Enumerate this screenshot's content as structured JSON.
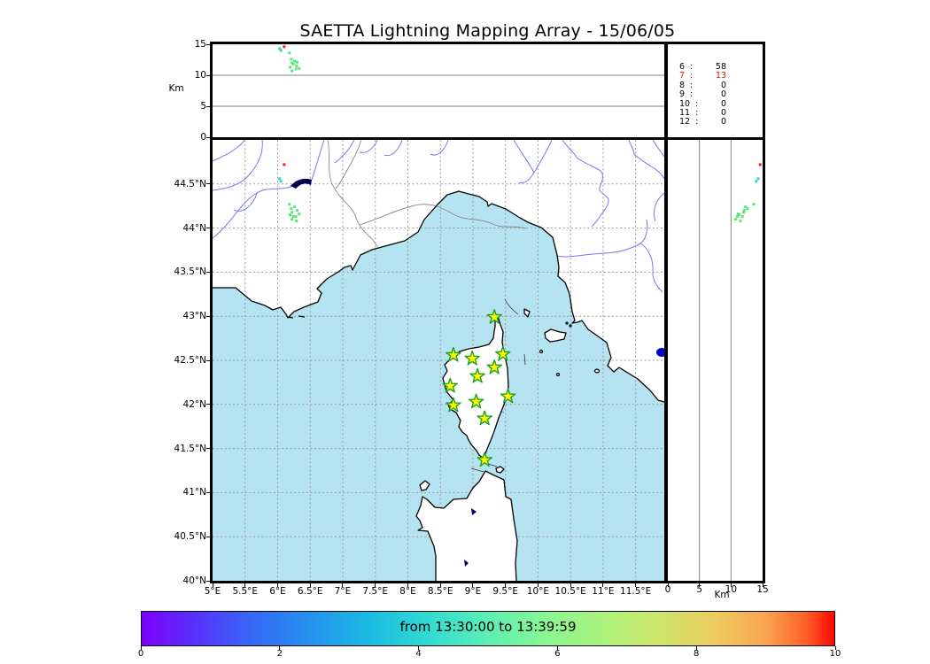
{
  "title": "SAETTA Lightning Mapping Array - 15/06/05",
  "alt_axis": {
    "label": "Km",
    "ticks": [
      0,
      5,
      10,
      15
    ],
    "max": 15,
    "gridlines": [
      5,
      10
    ]
  },
  "map_axes": {
    "lon_range": [
      5,
      11.94
    ],
    "lat_range": [
      40,
      45
    ],
    "x_ticks": [
      {
        "lon": 5,
        "label": "5°E"
      },
      {
        "lon": 5.5,
        "label": "5.5°E"
      },
      {
        "lon": 6,
        "label": "6°E"
      },
      {
        "lon": 6.5,
        "label": "6.5°E"
      },
      {
        "lon": 7,
        "label": "7°E"
      },
      {
        "lon": 7.5,
        "label": "7.5°E"
      },
      {
        "lon": 8,
        "label": "8°E"
      },
      {
        "lon": 8.5,
        "label": "8.5°E"
      },
      {
        "lon": 9,
        "label": "9°E"
      },
      {
        "lon": 9.5,
        "label": "9.5°E"
      },
      {
        "lon": 10,
        "label": "10°E"
      },
      {
        "lon": 10.5,
        "label": "10.5°E"
      },
      {
        "lon": 11,
        "label": "11°E"
      },
      {
        "lon": 11.5,
        "label": "11.5°E"
      }
    ],
    "y_ticks": [
      {
        "lat": 44.5,
        "label": "44.5°N"
      },
      {
        "lat": 44,
        "label": "44°N"
      },
      {
        "lat": 43.5,
        "label": "43.5°N"
      },
      {
        "lat": 43,
        "label": "43°N"
      },
      {
        "lat": 42.5,
        "label": "42.5°N"
      },
      {
        "lat": 42,
        "label": "42°N"
      },
      {
        "lat": 41.5,
        "label": "41.5°N"
      },
      {
        "lat": 41,
        "label": "41°N"
      },
      {
        "lat": 40.5,
        "label": "40.5°N"
      },
      {
        "lat": 40,
        "label": "40°N"
      }
    ]
  },
  "stats_panel": {
    "rows": [
      {
        "station": "6",
        "count": "58",
        "highlight": false
      },
      {
        "station": "7",
        "count": "13",
        "highlight": true
      },
      {
        "station": "8",
        "count": "0",
        "highlight": false
      },
      {
        "station": "9",
        "count": "0",
        "highlight": false
      },
      {
        "station": "10",
        "count": "0",
        "highlight": false
      },
      {
        "station": "11",
        "count": "0",
        "highlight": false
      },
      {
        "station": "12",
        "count": "0",
        "highlight": false
      }
    ]
  },
  "colorbar": {
    "label": "from 13:30:00 to 13:39:59",
    "ticks": [
      "0",
      "2",
      "4",
      "6",
      "8",
      "10"
    ],
    "range": [
      0,
      10
    ],
    "colormap": "rainbow"
  },
  "colors": {
    "sea": "#b5e3f2",
    "grid": "#999999",
    "panel_grid": "#808080",
    "river": "#7878ee",
    "country_border": "#8a8a8a",
    "coast": "#000000",
    "lake": "#000050",
    "lake_bright": "#0000cc",
    "star_fill": "#ffff00",
    "star_edge": "#1fa01f",
    "source_red": "#fb1f0e",
    "source_teal": "#2ed9c3",
    "source_green": "#55e77a",
    "stat_highlight": "#e80c00"
  },
  "chart_data": {
    "type": "scatter",
    "title": "SAETTA Lightning Mapping Array - 15/06/05",
    "description": "Lightning VHF sources in three linked projections: altitude vs longitude (top strip), plan view map (center), altitude vs latitude (right strip); station-count histogram text panel (top right); time colorbar (bottom).",
    "panels": [
      {
        "name": "altitude-longitude",
        "ylabel": "Km",
        "ylim": [
          0,
          15
        ],
        "xlim": [
          5,
          11.94
        ],
        "gridlines_km": [
          5,
          10
        ]
      },
      {
        "name": "map",
        "xlim_lon": [
          5,
          11.94
        ],
        "ylim_lat": [
          40,
          45
        ],
        "grid_step_deg": 0.5,
        "grid_style": "dotted"
      },
      {
        "name": "altitude-latitude",
        "xlabel": "Km",
        "xlim": [
          0,
          15
        ],
        "ylim": [
          40,
          45
        ],
        "gridlines_km": [
          5,
          10
        ]
      }
    ],
    "stations_lonlat": [
      [
        9.33,
        42.99
      ],
      [
        8.7,
        42.56
      ],
      [
        8.99,
        42.52
      ],
      [
        9.46,
        42.57
      ],
      [
        9.33,
        42.42
      ],
      [
        9.07,
        42.32
      ],
      [
        8.65,
        42.21
      ],
      [
        9.54,
        42.09
      ],
      [
        8.7,
        41.99
      ],
      [
        9.05,
        42.03
      ],
      [
        9.18,
        41.84
      ],
      [
        9.18,
        41.37
      ]
    ],
    "sources": [
      {
        "lon": 6.1,
        "lat": 44.72,
        "alt_km": 14.6,
        "color": "#fb1f0e"
      },
      {
        "lon": 6.03,
        "lat": 44.56,
        "alt_km": 14.3,
        "color": "#2ed9c3"
      },
      {
        "lon": 6.05,
        "lat": 44.53,
        "alt_km": 14.0,
        "color": "#2ed9c3"
      },
      {
        "lon": 6.18,
        "lat": 44.27,
        "alt_km": 13.6,
        "color": "#55e77a"
      },
      {
        "lon": 6.21,
        "lat": 44.22,
        "alt_km": 12.6,
        "color": "#55e77a"
      },
      {
        "lon": 6.26,
        "lat": 44.24,
        "alt_km": 12.3,
        "color": "#55e77a"
      },
      {
        "lon": 6.22,
        "lat": 44.18,
        "alt_km": 12.0,
        "color": "#55e77a"
      },
      {
        "lon": 6.3,
        "lat": 44.2,
        "alt_km": 12.1,
        "color": "#55e77a"
      },
      {
        "lon": 6.19,
        "lat": 44.15,
        "alt_km": 11.3,
        "color": "#55e77a"
      },
      {
        "lon": 6.28,
        "lat": 44.13,
        "alt_km": 11.0,
        "color": "#55e77a"
      },
      {
        "lon": 6.33,
        "lat": 44.16,
        "alt_km": 11.1,
        "color": "#55e77a"
      },
      {
        "lon": 6.22,
        "lat": 44.1,
        "alt_km": 10.7,
        "color": "#55e77a"
      },
      {
        "lon": 6.29,
        "lat": 44.08,
        "alt_km": 11.5,
        "color": "#55e77a"
      },
      {
        "lon": 6.24,
        "lat": 44.13,
        "alt_km": 11.8,
        "color": "#55e77a"
      }
    ],
    "station_count_histogram": {
      "6": 58,
      "7": 13,
      "8": 0,
      "9": 0,
      "10": 0,
      "11": 0,
      "12": 0
    }
  }
}
